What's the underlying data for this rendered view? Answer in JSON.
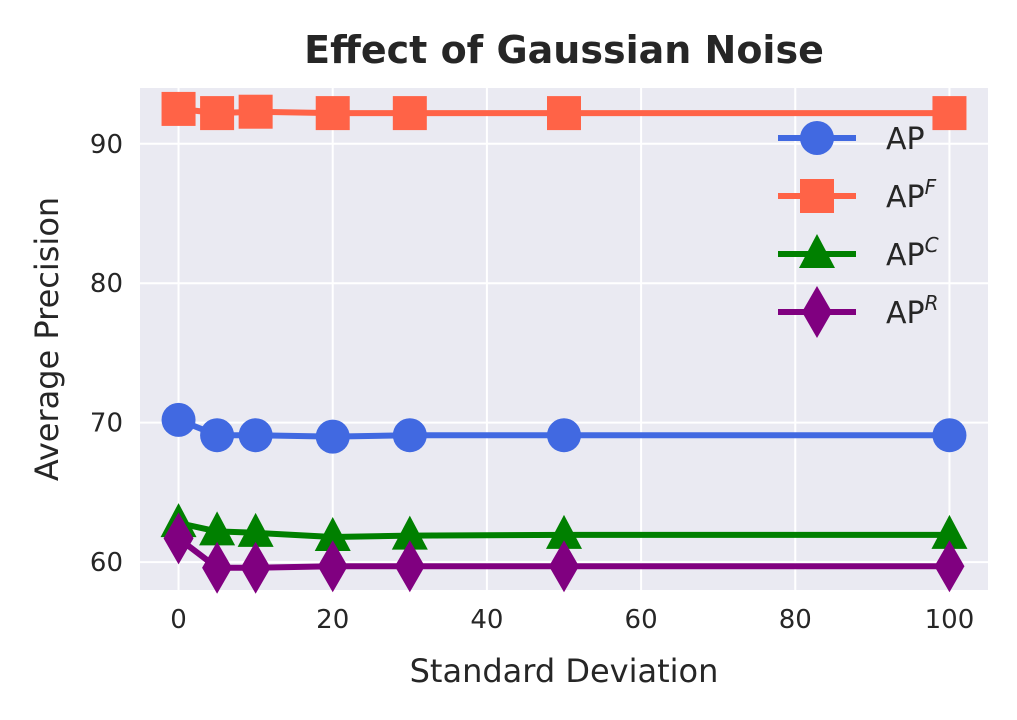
{
  "chart_data": {
    "type": "line",
    "title": "Effect of Gaussian Noise",
    "xlabel": "Standard Deviation",
    "ylabel": "Average Precision",
    "xlim": [
      -5,
      105
    ],
    "ylim": [
      58,
      94
    ],
    "xticks": [
      0,
      20,
      40,
      60,
      80,
      100
    ],
    "yticks": [
      60,
      70,
      80,
      90
    ],
    "grid": true,
    "legend_position": "upper-right",
    "x": [
      0,
      5,
      10,
      20,
      30,
      50,
      100
    ],
    "series": [
      {
        "name": "AP",
        "superscript": "",
        "color": "#4169e1",
        "marker": "circle",
        "values": [
          70.2,
          69.1,
          69.1,
          69.0,
          69.1,
          69.1,
          69.1
        ]
      },
      {
        "name": "AP",
        "superscript": "F",
        "color": "#ff6347",
        "marker": "square",
        "values": [
          92.5,
          92.2,
          92.3,
          92.2,
          92.2,
          92.2,
          92.2
        ]
      },
      {
        "name": "AP",
        "superscript": "C",
        "color": "#008000",
        "marker": "triangle",
        "values": [
          62.8,
          62.2,
          62.1,
          61.8,
          61.9,
          61.95,
          61.95
        ]
      },
      {
        "name": "AP",
        "superscript": "R",
        "color": "#800080",
        "marker": "diamond",
        "values": [
          61.7,
          59.6,
          59.6,
          59.7,
          59.7,
          59.7,
          59.7
        ]
      }
    ]
  }
}
